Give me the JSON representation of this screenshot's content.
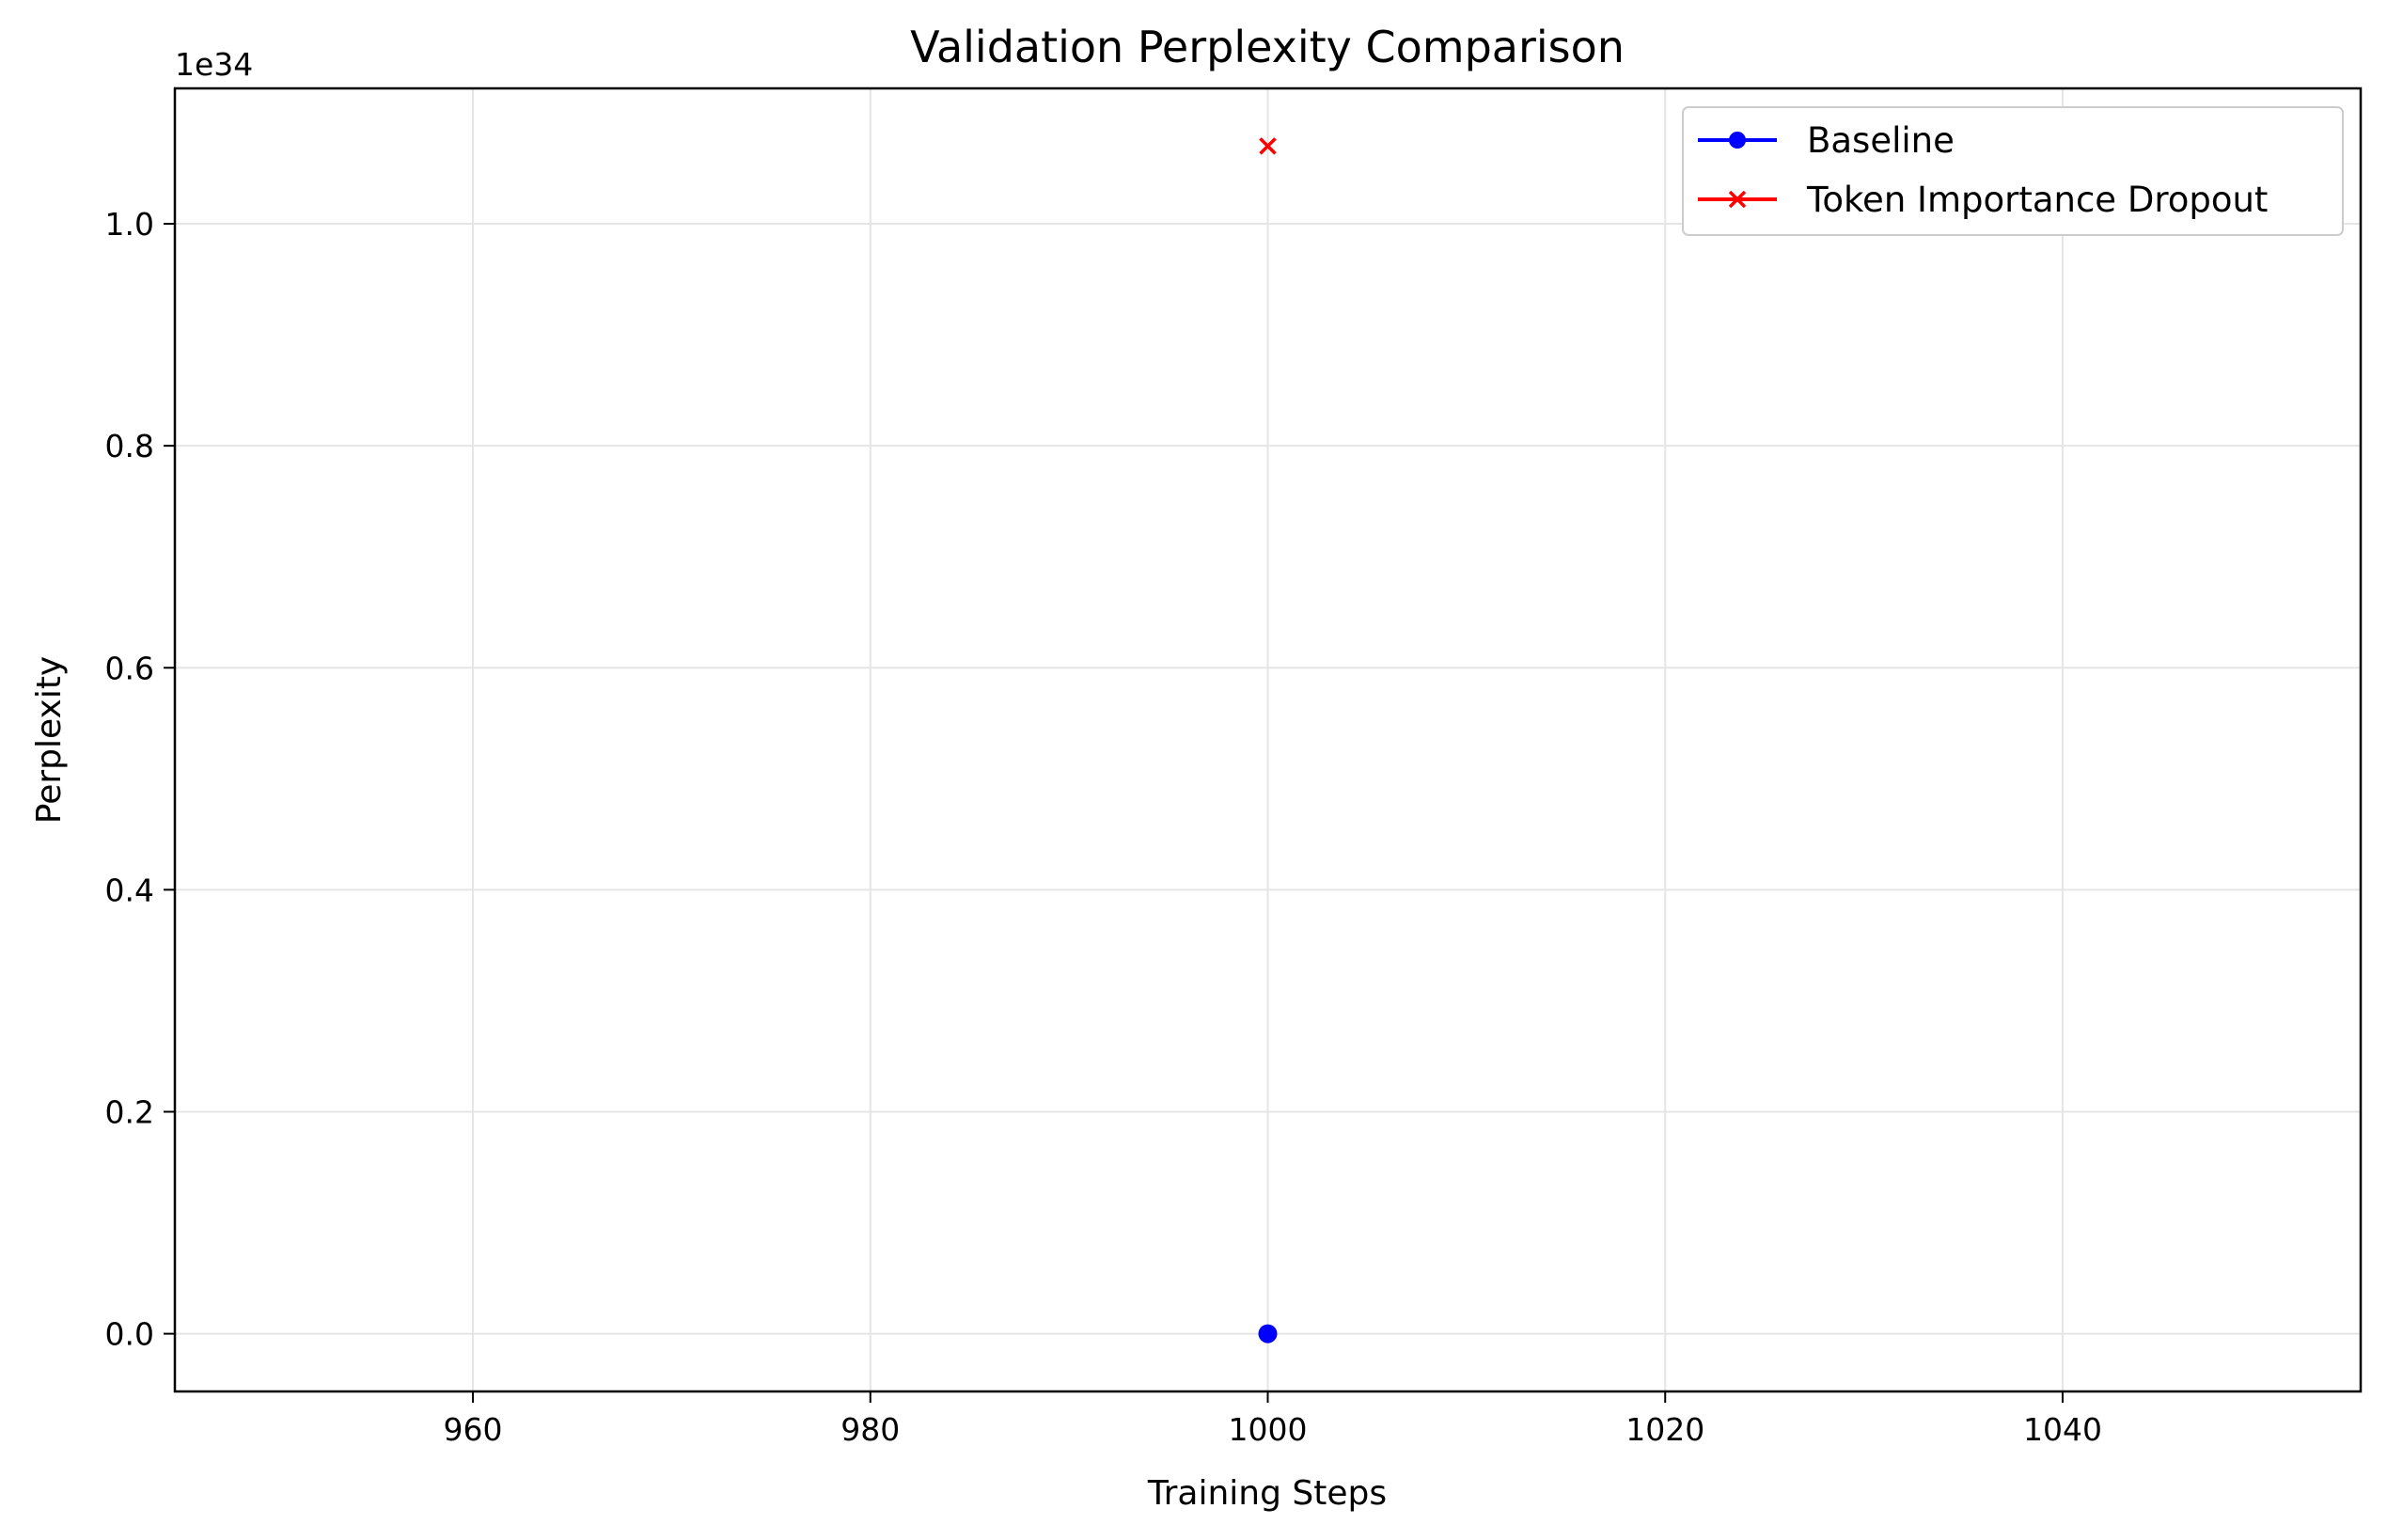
{
  "chart_data": {
    "type": "line",
    "title": "Validation Perplexity Comparison",
    "xlabel": "Training Steps",
    "ylabel": "Perplexity",
    "y_offset_label": "1e34",
    "xlim": [
      945,
      1055
    ],
    "ylim": [
      -0.052,
      1.122
    ],
    "x_ticks": [
      960,
      980,
      1000,
      1020,
      1040
    ],
    "x_tick_labels": [
      "960",
      "980",
      "1000",
      "1020",
      "1040"
    ],
    "y_ticks": [
      0.0,
      0.2,
      0.4,
      0.6,
      0.8,
      1.0
    ],
    "y_tick_labels": [
      "0.0",
      "0.2",
      "0.4",
      "0.6",
      "0.8",
      "1.0"
    ],
    "grid": true,
    "legend_position": "top-right",
    "series": [
      {
        "name": "Baseline",
        "color": "#0000ff",
        "marker": "circle",
        "x": [
          1000
        ],
        "y": [
          0.0
        ]
      },
      {
        "name": "Token Importance Dropout",
        "color": "#ff0000",
        "marker": "x",
        "x": [
          1000
        ],
        "y": [
          1.07
        ]
      }
    ]
  }
}
